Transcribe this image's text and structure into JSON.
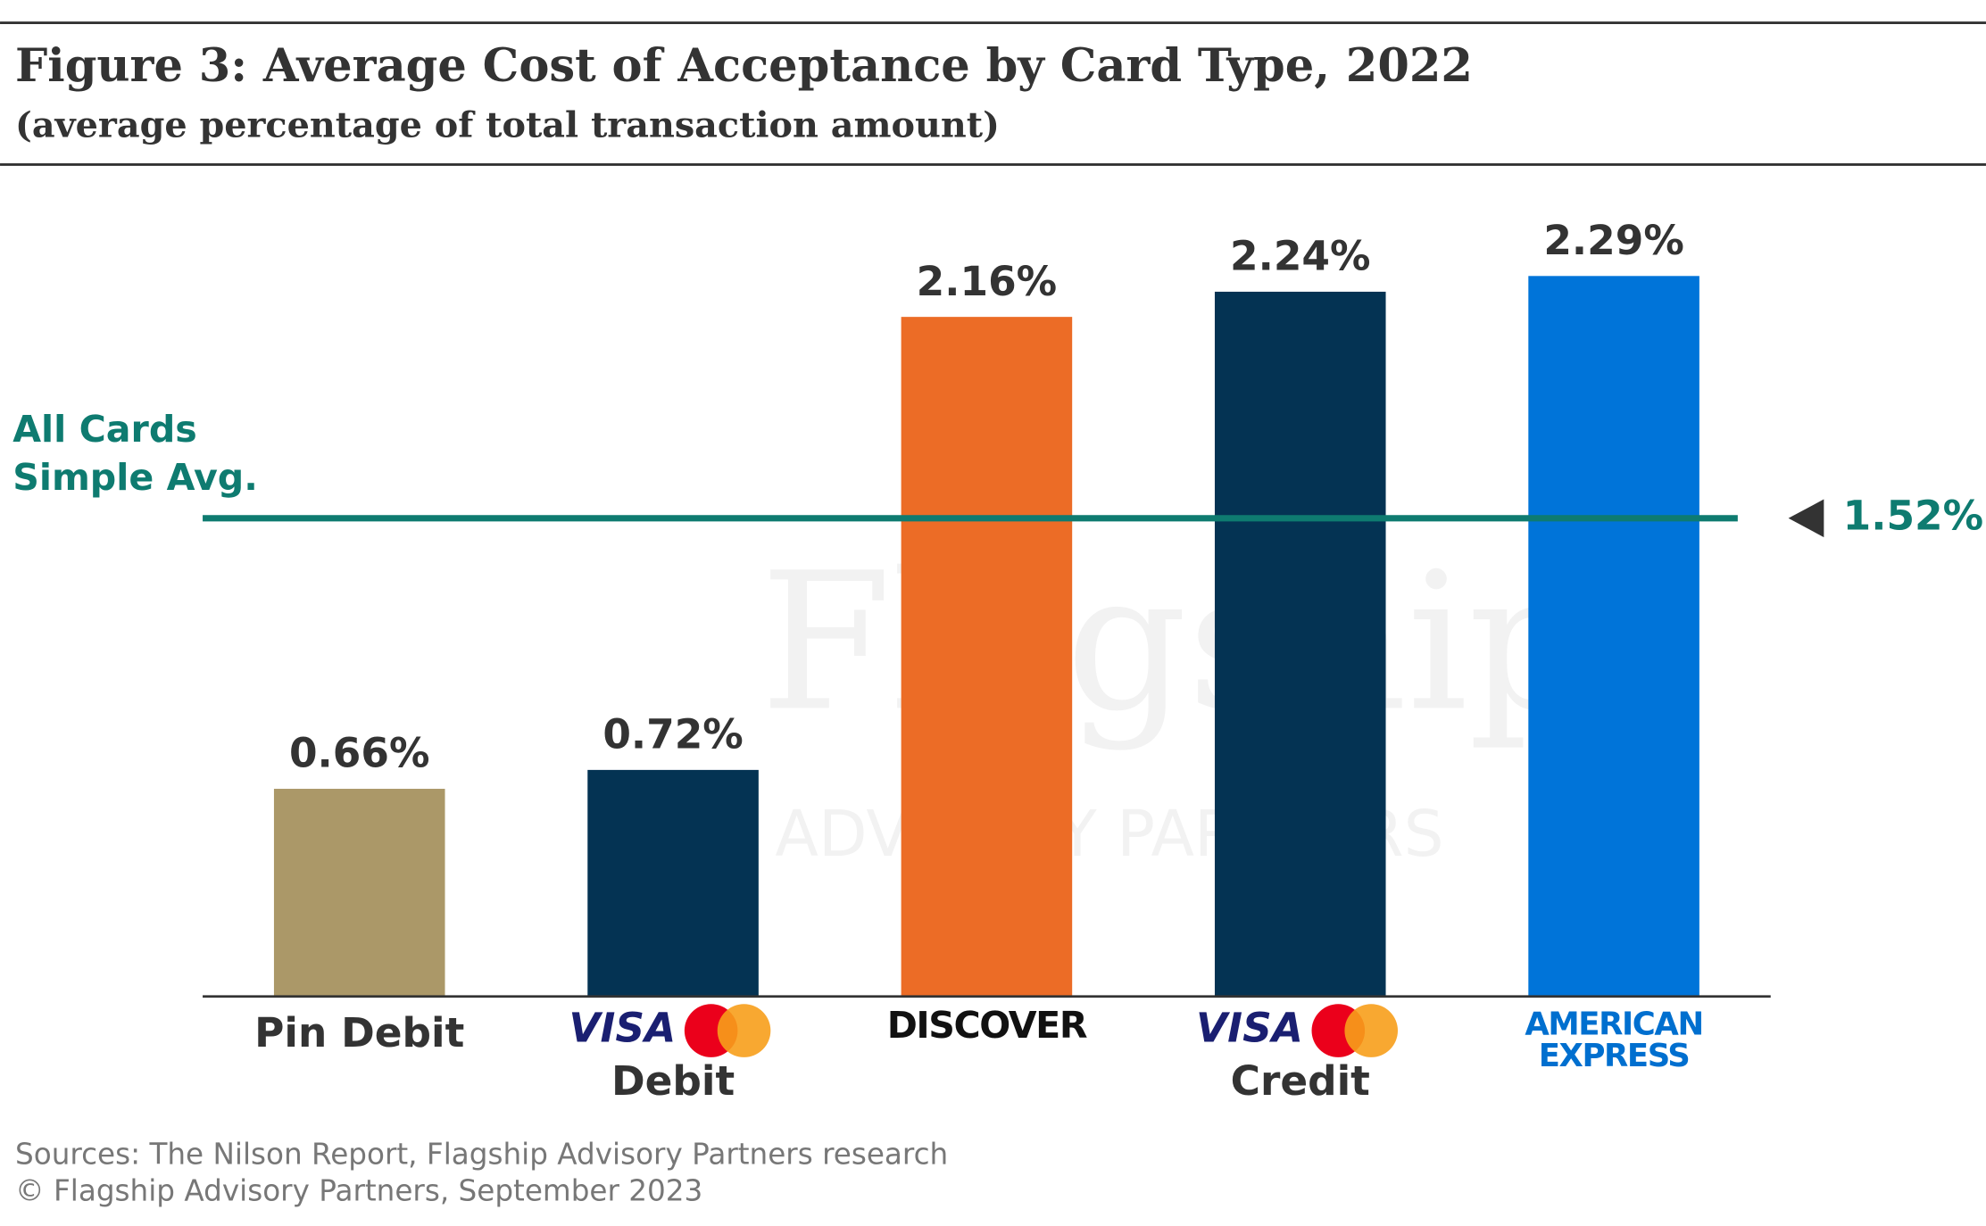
{
  "chart_data": {
    "type": "bar",
    "title": "Figure 3: Average Cost of Acceptance by Card Type, 2022",
    "subtitle": "(average percentage of total transaction amount)",
    "categories": [
      "Pin Debit",
      "Debit",
      "DISCOVER",
      "Credit",
      "AMERICAN EXPRESS"
    ],
    "logo_text": [
      null,
      "VISA",
      null,
      "VISA",
      null
    ],
    "values": [
      0.66,
      0.72,
      2.16,
      2.24,
      2.29
    ],
    "value_labels": [
      "0.66%",
      "0.72%",
      "2.16%",
      "2.24%",
      "2.29%"
    ],
    "colors": [
      "#ab9868",
      "#043353",
      "#ec6c26",
      "#043353",
      "#0074d9"
    ],
    "ylim": [
      0,
      2.5
    ],
    "reference_line": {
      "value": 1.52,
      "value_label": "1.52%",
      "label": [
        "All Cards",
        "Simple Avg."
      ],
      "color": "#0e7b70"
    },
    "watermark": [
      "Flagship",
      "ADVISORY PARTNERS"
    ],
    "sources": [
      "Sources: The Nilson Report, Flagship Advisory Partners research",
      "© Flagship Advisory Partners, September 2023"
    ]
  }
}
